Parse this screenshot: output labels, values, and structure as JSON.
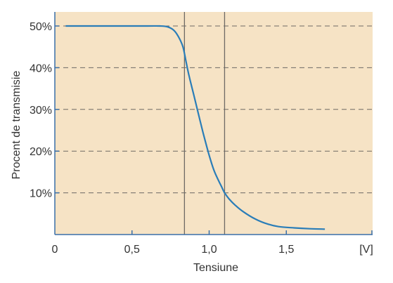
{
  "chart_data": {
    "type": "line",
    "title": "",
    "xlabel": "Tensiune",
    "ylabel": "Procent de transmisie",
    "x_unit_label": "[V]",
    "xlim": [
      0,
      1.95
    ],
    "ylim": [
      0,
      50
    ],
    "x_ticks": [
      0,
      0.5,
      1.0,
      1.5
    ],
    "x_tick_labels": [
      "0",
      "0,5",
      "1,0",
      "1,5"
    ],
    "y_ticks": [
      10,
      20,
      30,
      40,
      50
    ],
    "y_tick_labels": [
      "10%",
      "20%",
      "30%",
      "40%",
      "50%"
    ],
    "grid": {
      "horizontal": true,
      "style": "dashed"
    },
    "reference_lines_x": [
      0.84,
      1.1
    ],
    "series": [
      {
        "x": [
          0.07,
          0.2,
          0.4,
          0.6,
          0.68,
          0.73,
          0.77,
          0.8,
          0.83,
          0.85,
          0.87,
          0.9,
          0.93,
          0.96,
          1.0,
          1.03,
          1.06,
          1.08,
          1.1,
          1.13,
          1.17,
          1.22,
          1.3,
          1.38,
          1.45,
          1.55,
          1.65,
          1.75
        ],
        "y": [
          50,
          50,
          50,
          50,
          50,
          49.8,
          49,
          47.5,
          45,
          41.5,
          38,
          33.5,
          29,
          24.5,
          19,
          15.5,
          13,
          11.5,
          10,
          8.5,
          7,
          5.5,
          3.7,
          2.5,
          1.9,
          1.6,
          1.4,
          1.3
        ],
        "color": "#2a7db8"
      }
    ],
    "colors": {
      "plot_bg": "#f6e3c5",
      "line": "#2a7db8",
      "grid": "#6e6a65",
      "ref": "#6e6a65",
      "axis": "#3a6fa8"
    }
  }
}
